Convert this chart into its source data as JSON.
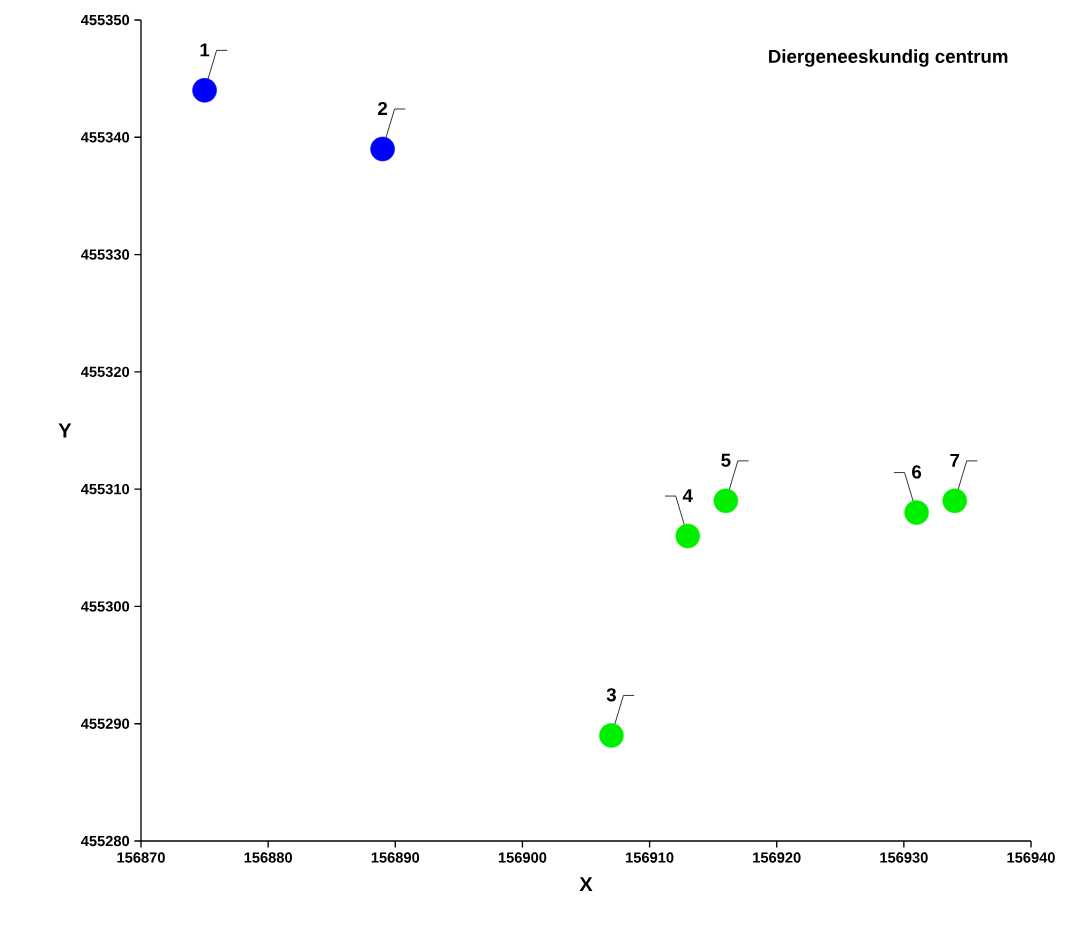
{
  "chart_data": {
    "type": "scatter",
    "title": "Diergeneeskundig centrum",
    "xlabel": "X",
    "ylabel": "Y",
    "xlim": [
      156870,
      156940
    ],
    "ylim": [
      455280,
      455350
    ],
    "xticks": [
      156870,
      156880,
      156890,
      156900,
      156910,
      156920,
      156930,
      156940
    ],
    "yticks": [
      455280,
      455290,
      455300,
      455310,
      455320,
      455330,
      455340,
      455350
    ],
    "marker": "circle",
    "grid": false,
    "series": [
      {
        "color": "#0000ff",
        "x": [
          156875,
          156889
        ],
        "values": [
          455344,
          455339
        ]
      },
      {
        "color": "#00ee00",
        "x": [
          156907,
          156913,
          156916,
          156931,
          156934
        ],
        "values": [
          455289,
          455306,
          455309,
          455308,
          455309
        ]
      }
    ],
    "annotations": [
      {
        "text": "1",
        "x": 156875,
        "y": 455344
      },
      {
        "text": "2",
        "x": 156889,
        "y": 455339
      },
      {
        "text": "3",
        "x": 156907,
        "y": 455289
      },
      {
        "text": "4",
        "x": 156913,
        "y": 455306
      },
      {
        "text": "5",
        "x": 156916,
        "y": 455309
      },
      {
        "text": "6",
        "x": 156931,
        "y": 455308
      },
      {
        "text": "7",
        "x": 156934,
        "y": 455309
      }
    ]
  }
}
